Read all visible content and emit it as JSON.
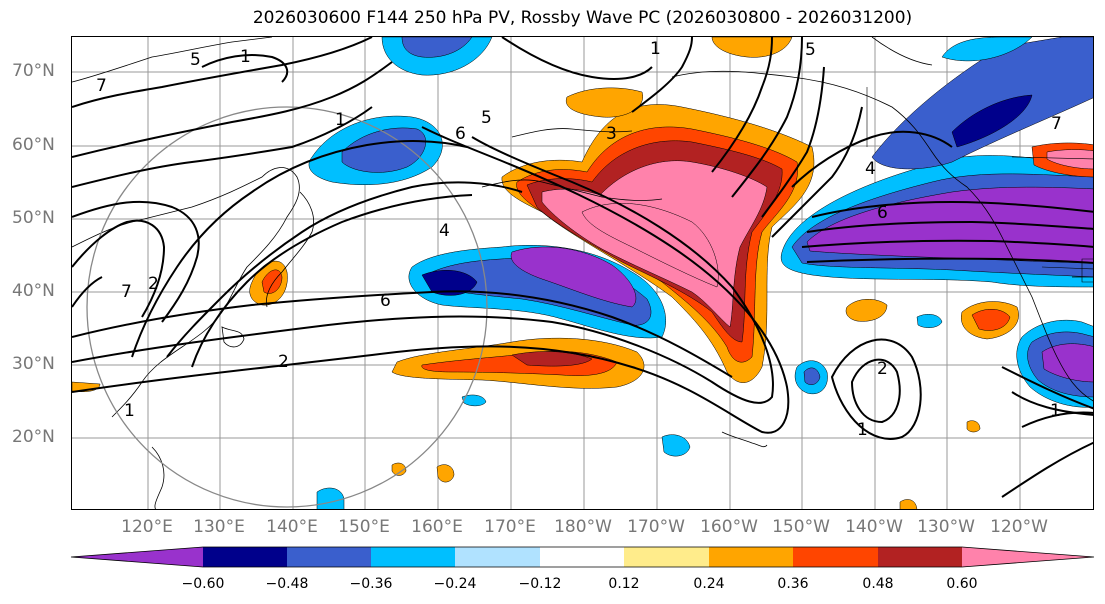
{
  "title": "2026030600 F144 250 hPa PV, Rossby Wave PC (2026030800 - 2026031200)",
  "lat_labels": [
    "70°N",
    "60°N",
    "50°N",
    "40°N",
    "30°N",
    "20°N"
  ],
  "lon_labels": [
    "120°E",
    "130°E",
    "140°E",
    "150°E",
    "160°E",
    "170°E",
    "180°W",
    "170°W",
    "160°W",
    "150°W",
    "140°W",
    "130°W",
    "120°W"
  ],
  "contour_labels": [
    "7",
    "5",
    "1",
    "5",
    "3",
    "5",
    "1",
    "4",
    "7",
    "6",
    "6",
    "4",
    "6",
    "2",
    "1",
    "2",
    "1",
    "1",
    "7",
    "2",
    "1"
  ],
  "colorbar": {
    "ticks": [
      "−0.60",
      "−0.48",
      "−0.36",
      "−0.24",
      "−0.12",
      "0.12",
      "0.24",
      "0.36",
      "0.48",
      "0.60"
    ],
    "colors": [
      "#9932cc",
      "#00008b",
      "#3a5fcd",
      "#00bfff",
      "#b0e2ff",
      "#ffffff",
      "#ffec8b",
      "#ffa500",
      "#ff4500",
      "#b22222",
      "#ff82ab"
    ]
  },
  "colors": {
    "purple": "#9932cc",
    "navy": "#00008b",
    "blue": "#3a5fcd",
    "sky": "#00bfff",
    "lightblue": "#b0e2ff",
    "yellow": "#ffec8b",
    "orange": "#ffa500",
    "red": "#ff4500",
    "darkred": "#b22222",
    "pink": "#ff82ab"
  }
}
